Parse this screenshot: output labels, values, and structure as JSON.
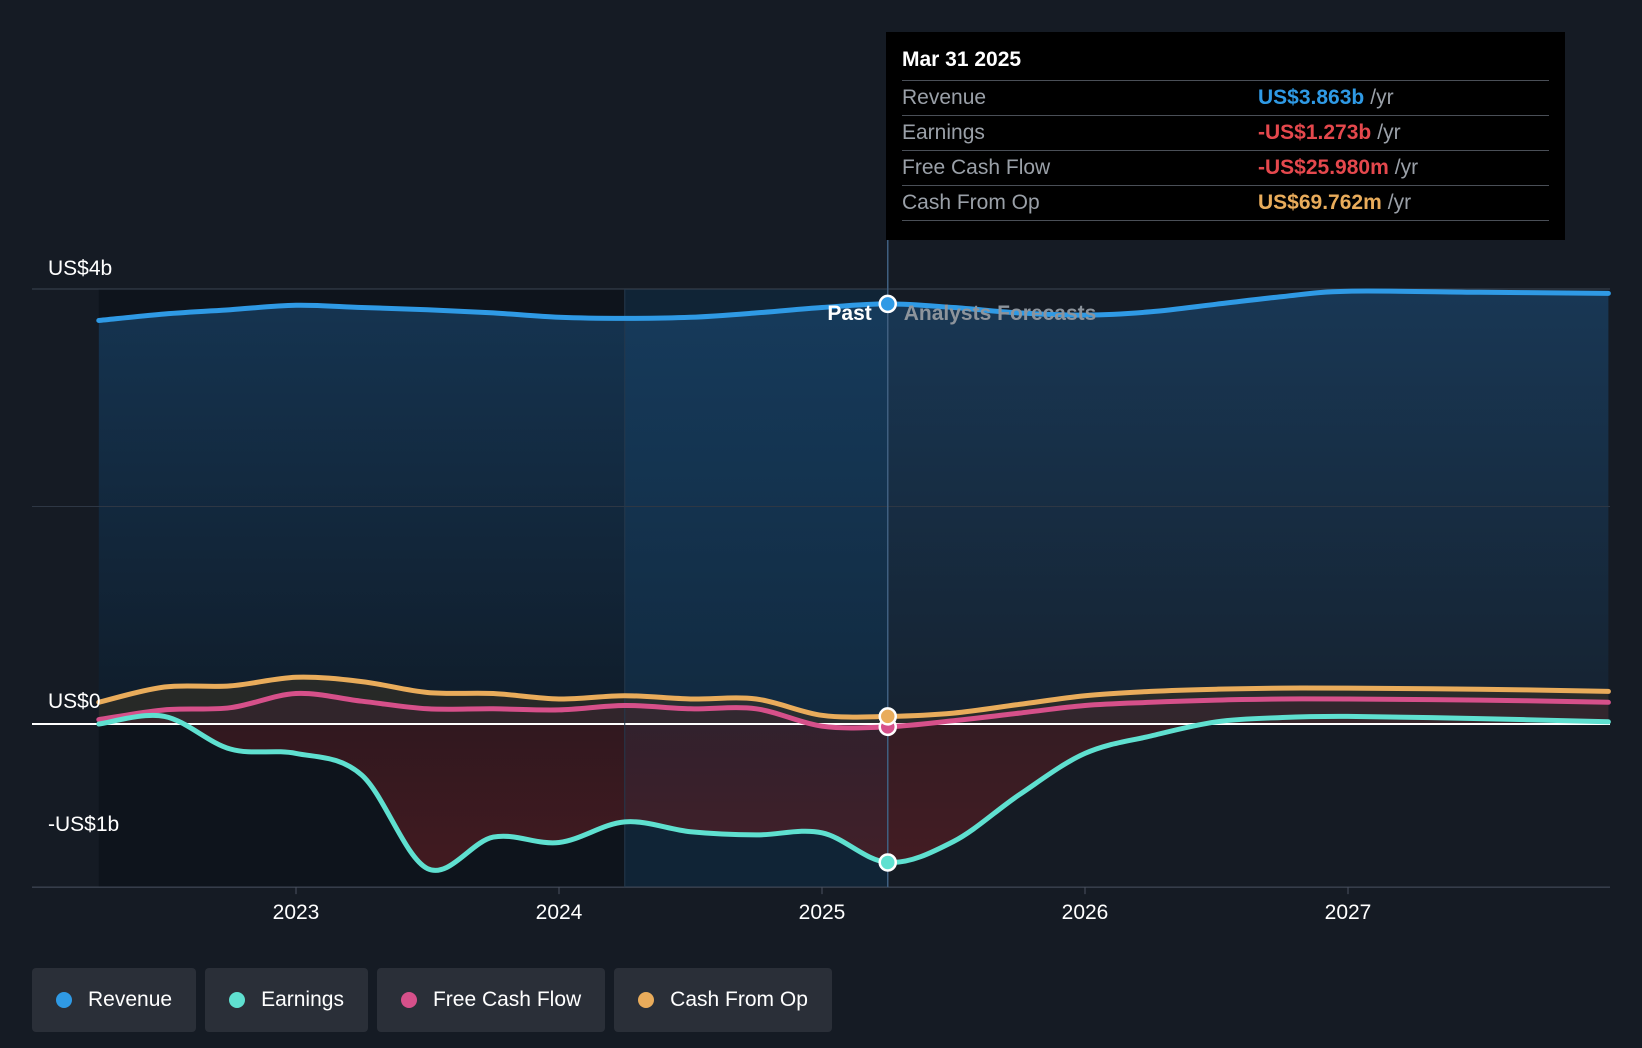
{
  "tooltip": {
    "date": "Mar 31 2025",
    "rows": [
      {
        "label": "Revenue",
        "value": "US$3.863b",
        "unit": "/yr",
        "color": "#2f9ae5"
      },
      {
        "label": "Earnings",
        "value": "-US$1.273b",
        "unit": "/yr",
        "color": "#e5484d"
      },
      {
        "label": "Free Cash Flow",
        "value": "-US$25.980m",
        "unit": "/yr",
        "color": "#e5484d"
      },
      {
        "label": "Cash From Op",
        "value": "US$69.762m",
        "unit": "/yr",
        "color": "#e9ac5b"
      }
    ]
  },
  "legend": [
    {
      "label": "Revenue",
      "color": "#2f9ae5"
    },
    {
      "label": "Earnings",
      "color": "#5fe0d0"
    },
    {
      "label": "Free Cash Flow",
      "color": "#d6508a"
    },
    {
      "label": "Cash From Op",
      "color": "#e9ac5b"
    }
  ],
  "chart_data": {
    "type": "line",
    "y_tick_labels": [
      "US$4b",
      "US$0",
      "-US$1b"
    ],
    "y_ticks": [
      4,
      0,
      -1
    ],
    "ylim": [
      -1.5,
      4.0
    ],
    "xlim": [
      2022.0,
      2028.0
    ],
    "x_tick_labels": [
      "2023",
      "2024",
      "2025",
      "2026",
      "2027"
    ],
    "x_ticks": [
      2023,
      2024,
      2025,
      2026,
      2027
    ],
    "divider_x": 2025.25,
    "highlight_start_x": 2024.25,
    "past_label": "Past",
    "forecast_label": "Analysts Forecasts",
    "grid": true,
    "series": [
      {
        "name": "Revenue",
        "color": "#2f9ae5",
        "x": [
          2022.25,
          2022.5,
          2022.75,
          2023.0,
          2023.25,
          2023.5,
          2023.75,
          2024.0,
          2024.25,
          2024.5,
          2024.75,
          2025.0,
          2025.25,
          2025.5,
          2025.75,
          2026.0,
          2026.25,
          2026.5,
          2026.75,
          2027.0,
          2027.5,
          2027.99
        ],
        "y": [
          3.71,
          3.77,
          3.81,
          3.85,
          3.83,
          3.81,
          3.78,
          3.74,
          3.73,
          3.74,
          3.78,
          3.83,
          3.863,
          3.83,
          3.78,
          3.76,
          3.79,
          3.86,
          3.93,
          3.98,
          3.97,
          3.96
        ]
      },
      {
        "name": "Earnings",
        "color": "#5fe0d0",
        "x": [
          2022.25,
          2022.5,
          2022.75,
          2023.0,
          2023.25,
          2023.5,
          2023.75,
          2024.0,
          2024.25,
          2024.5,
          2024.75,
          2025.0,
          2025.25,
          2025.5,
          2025.75,
          2026.0,
          2026.25,
          2026.5,
          2026.75,
          2027.0,
          2027.5,
          2027.99
        ],
        "y": [
          0.0,
          0.07,
          -0.23,
          -0.27,
          -0.47,
          -1.33,
          -1.04,
          -1.09,
          -0.9,
          -0.99,
          -1.02,
          -1.0,
          -1.273,
          -1.08,
          -0.65,
          -0.27,
          -0.11,
          0.02,
          0.06,
          0.07,
          0.05,
          0.02
        ]
      },
      {
        "name": "Free Cash Flow",
        "color": "#d6508a",
        "x": [
          2022.25,
          2022.5,
          2022.75,
          2023.0,
          2023.25,
          2023.5,
          2023.75,
          2024.0,
          2024.25,
          2024.5,
          2024.75,
          2025.0,
          2025.25,
          2025.5,
          2025.75,
          2026.0,
          2026.25,
          2026.5,
          2026.75,
          2027.0,
          2027.5,
          2027.99
        ],
        "y": [
          0.04,
          0.13,
          0.15,
          0.28,
          0.21,
          0.14,
          0.14,
          0.13,
          0.17,
          0.14,
          0.14,
          -0.02,
          -0.026,
          0.03,
          0.1,
          0.17,
          0.2,
          0.22,
          0.23,
          0.23,
          0.22,
          0.2
        ]
      },
      {
        "name": "Cash From Op",
        "color": "#e9ac5b",
        "x": [
          2022.25,
          2022.5,
          2022.75,
          2023.0,
          2023.25,
          2023.5,
          2023.75,
          2024.0,
          2024.25,
          2024.5,
          2024.75,
          2025.0,
          2025.25,
          2025.5,
          2025.75,
          2026.0,
          2026.25,
          2026.5,
          2026.75,
          2027.0,
          2027.5,
          2027.99
        ],
        "y": [
          0.2,
          0.34,
          0.35,
          0.43,
          0.39,
          0.29,
          0.28,
          0.23,
          0.26,
          0.23,
          0.23,
          0.08,
          0.07,
          0.1,
          0.18,
          0.26,
          0.3,
          0.32,
          0.33,
          0.33,
          0.32,
          0.3
        ]
      }
    ]
  }
}
